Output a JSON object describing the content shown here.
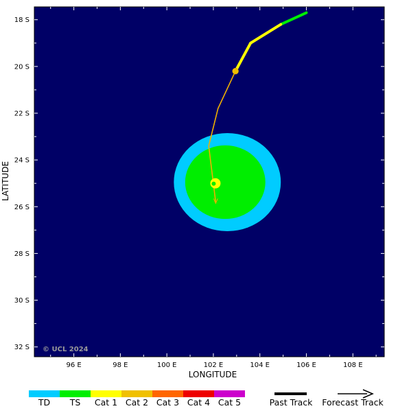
{
  "map": {
    "background_color": "#000066",
    "lat_ticks": [
      "18 S",
      "20 S",
      "22 S",
      "24 S",
      "26 S",
      "28 S",
      "30 S",
      "32 S"
    ],
    "lon_ticks": [
      "96 E",
      "98 E",
      "100 E",
      "102 E",
      "104 E",
      "106 E",
      "108 E"
    ],
    "xlabel": "LONGITUDE",
    "ylabel": "LATITUDE",
    "copyright": "© UCL 2024"
  },
  "storm": {
    "past_track": [
      {
        "lon": 106.0,
        "lat": 17.7,
        "category": "TS"
      },
      {
        "lon": 104.9,
        "lat": 18.2,
        "category": "TS"
      },
      {
        "lon": 103.6,
        "lat": 19.0,
        "category": "Cat 1"
      },
      {
        "lon": 102.95,
        "lat": 20.2,
        "category": "Cat 1"
      }
    ],
    "current_position": {
      "lon": 102.95,
      "lat": 20.2,
      "category": "Cat 2"
    },
    "forecast_track": [
      {
        "lon": 102.95,
        "lat": 20.2
      },
      {
        "lon": 102.2,
        "lat": 21.8
      },
      {
        "lon": 101.8,
        "lat": 23.4
      },
      {
        "lon": 102.0,
        "lat": 25.0
      },
      {
        "lon": 102.1,
        "lat": 25.8
      }
    ],
    "forecast_track_color": "#f0b000",
    "forecast_marker": {
      "lon": 102.0,
      "lat": 25.0,
      "category": "Cat 1"
    },
    "wind_field": {
      "center_lon": 102.6,
      "center_lat": 24.95,
      "ts_radius_lon": 4.6,
      "ts_radius_lat": 4.2,
      "td_ts_radius_lon": 3.45,
      "td_ts_radius_lat": 3.15,
      "td_category": "TD",
      "ts_category": "TS"
    }
  },
  "legend": {
    "categories": [
      {
        "label": "TD",
        "color": "#00ccff"
      },
      {
        "label": "TS",
        "color": "#00ee00"
      },
      {
        "label": "Cat 1",
        "color": "#ffff00"
      },
      {
        "label": "Cat 2",
        "color": "#f0c000"
      },
      {
        "label": "Cat 3",
        "color": "#ff6600"
      },
      {
        "label": "Cat 4",
        "color": "#ee0000"
      },
      {
        "label": "Cat 5",
        "color": "#cc00cc"
      }
    ],
    "past_track_label": "Past Track",
    "forecast_track_label": "Forecast Track"
  }
}
